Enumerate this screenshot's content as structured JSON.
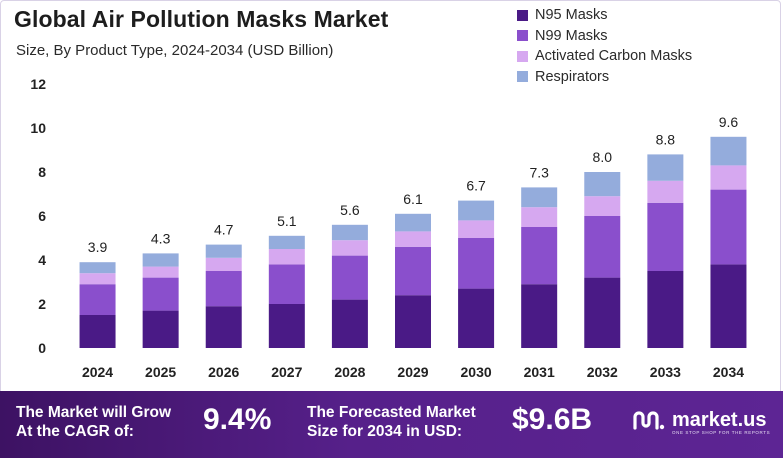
{
  "header": {
    "title": "Global Air Pollution Masks Market",
    "subtitle": "Size, By Product Type, 2024-2034 (USD Billion)"
  },
  "chart_data": {
    "type": "bar",
    "stacked": true,
    "categories": [
      "2024",
      "2025",
      "2026",
      "2027",
      "2028",
      "2029",
      "2030",
      "2031",
      "2032",
      "2033",
      "2034"
    ],
    "series": [
      {
        "name": "N95 Masks",
        "color": "#4a1a86",
        "values": [
          1.5,
          1.7,
          1.9,
          2.0,
          2.2,
          2.4,
          2.7,
          2.9,
          3.2,
          3.5,
          3.8
        ]
      },
      {
        "name": "N99 Masks",
        "color": "#8a4fcc",
        "values": [
          1.4,
          1.5,
          1.6,
          1.8,
          2.0,
          2.2,
          2.3,
          2.6,
          2.8,
          3.1,
          3.4
        ]
      },
      {
        "name": "Activated Carbon Masks",
        "color": "#d6a8f0",
        "values": [
          0.5,
          0.5,
          0.6,
          0.7,
          0.7,
          0.7,
          0.8,
          0.9,
          0.9,
          1.0,
          1.1
        ]
      },
      {
        "name": "Respirators",
        "color": "#94acdc",
        "values": [
          0.5,
          0.6,
          0.6,
          0.6,
          0.7,
          0.8,
          0.9,
          0.9,
          1.1,
          1.2,
          1.3
        ]
      }
    ],
    "totals": [
      "3.9",
      "4.3",
      "4.7",
      "5.1",
      "5.6",
      "6.1",
      "6.7",
      "7.3",
      "8.0",
      "8.8",
      "9.6"
    ],
    "ylim": [
      0,
      12
    ],
    "yticks": [
      "0",
      "2",
      "4",
      "6",
      "8",
      "10",
      "12"
    ],
    "grid": false,
    "legend_position": "top-right"
  },
  "footer": {
    "cagr_label_line1": "The Market will Grow",
    "cagr_label_line2": "At the CAGR of:",
    "cagr_value": "9.4%",
    "forecast_label_line1": "The Forecasted Market",
    "forecast_label_line2": "Size for 2034 in USD:",
    "forecast_value": "$9.6B",
    "brand_name": "market.us",
    "brand_tagline": "ONE STOP SHOP FOR THE REPORTS"
  }
}
